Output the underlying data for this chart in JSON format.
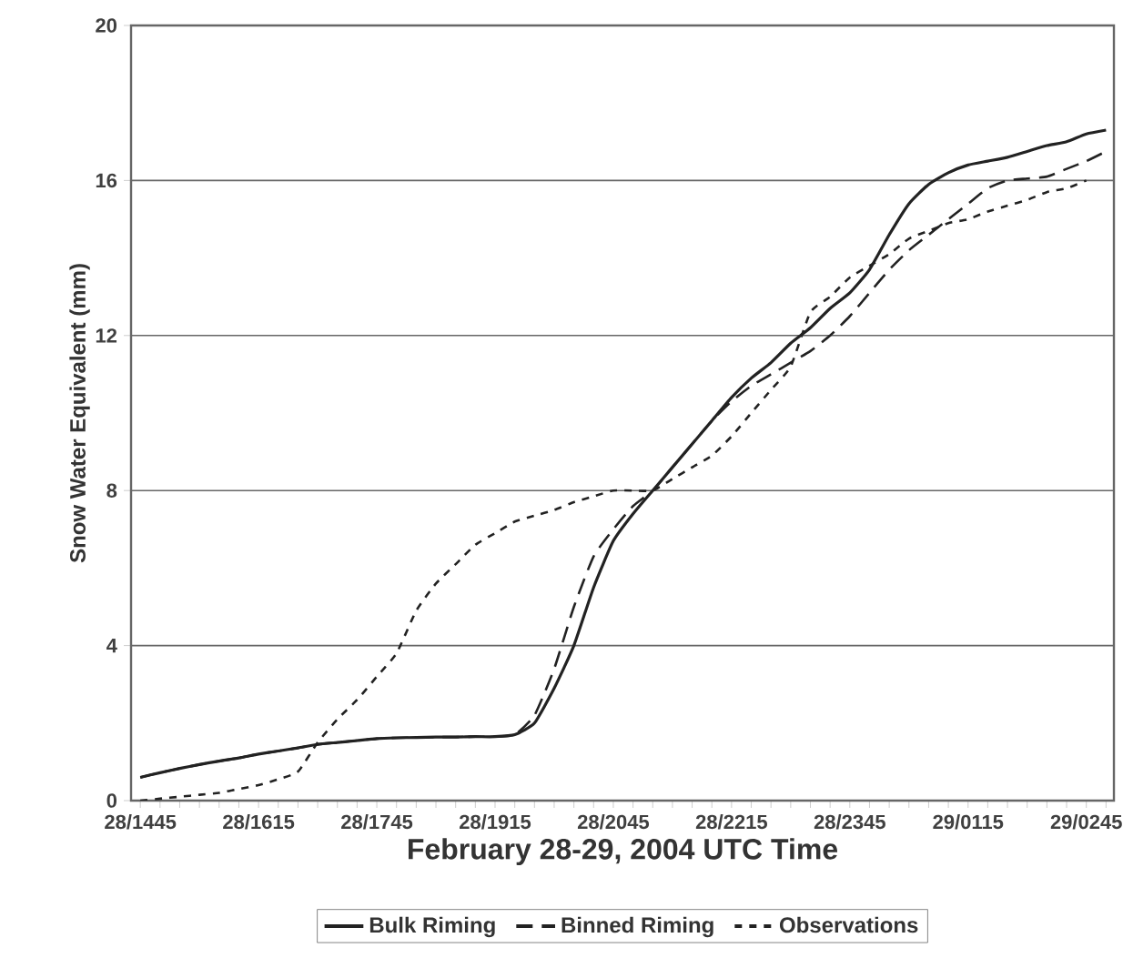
{
  "chart_data": {
    "type": "line",
    "xlabel": "February 28-29, 2004 UTC Time",
    "ylabel": "Snow Water Equivalent (mm)",
    "categories": [
      "28/1445",
      null,
      null,
      null,
      null,
      null,
      "28/1615",
      null,
      null,
      null,
      null,
      null,
      "28/1745",
      null,
      null,
      null,
      null,
      null,
      "28/1915",
      null,
      null,
      null,
      null,
      null,
      "28/2045",
      null,
      null,
      null,
      null,
      null,
      "28/2215",
      null,
      null,
      null,
      null,
      null,
      "28/2345",
      null,
      null,
      null,
      null,
      null,
      "29/0115",
      null,
      null,
      null,
      null,
      null,
      "29/0245",
      null
    ],
    "ylim": [
      0,
      20
    ],
    "yticks": [
      0,
      4,
      8,
      12,
      16,
      20
    ],
    "grid": "y",
    "legend": "bottom",
    "series": [
      {
        "name": "Bulk Riming",
        "color": "#222222",
        "line_style": "solid",
        "values": [
          0.6,
          0.72,
          0.83,
          0.93,
          1.02,
          1.1,
          1.2,
          1.28,
          1.36,
          1.45,
          1.5,
          1.55,
          1.6,
          1.62,
          1.63,
          1.64,
          1.64,
          1.65,
          1.65,
          1.7,
          2.0,
          2.9,
          4.0,
          5.5,
          6.7,
          7.4,
          8.0,
          8.6,
          9.2,
          9.8,
          10.4,
          10.9,
          11.3,
          11.8,
          12.2,
          12.7,
          13.1,
          13.7,
          14.6,
          15.4,
          15.9,
          16.2,
          16.4,
          16.5,
          16.6,
          16.75,
          16.9,
          17.0,
          17.2,
          17.3
        ]
      },
      {
        "name": "Binned Riming",
        "color": "#222222",
        "line_style": "dashed",
        "values": [
          0.6,
          0.72,
          0.83,
          0.93,
          1.02,
          1.1,
          1.2,
          1.28,
          1.36,
          1.45,
          1.5,
          1.55,
          1.6,
          1.62,
          1.63,
          1.64,
          1.64,
          1.65,
          1.65,
          1.7,
          2.2,
          3.4,
          5.0,
          6.3,
          7.0,
          7.6,
          8.0,
          8.6,
          9.2,
          9.8,
          10.3,
          10.7,
          11.0,
          11.3,
          11.6,
          12.0,
          12.5,
          13.1,
          13.7,
          14.2,
          14.6,
          15.0,
          15.4,
          15.8,
          16.0,
          16.05,
          16.1,
          16.3,
          16.5,
          16.75
        ]
      },
      {
        "name": "Observations",
        "color": "#222222",
        "line_style": "dotted",
        "values": [
          0.0,
          0.05,
          0.1,
          0.15,
          0.2,
          0.3,
          0.4,
          0.55,
          0.75,
          1.5,
          2.1,
          2.6,
          3.2,
          3.8,
          4.9,
          5.6,
          6.1,
          6.6,
          6.9,
          7.2,
          7.35,
          7.5,
          7.7,
          7.85,
          8.0,
          8.0,
          8.0,
          8.3,
          8.6,
          8.9,
          9.4,
          10.0,
          10.6,
          11.2,
          12.6,
          13.0,
          13.5,
          13.8,
          14.1,
          14.5,
          14.7,
          14.9,
          15.0,
          15.2,
          15.35,
          15.5,
          15.7,
          15.8,
          16.0,
          null
        ]
      }
    ]
  }
}
